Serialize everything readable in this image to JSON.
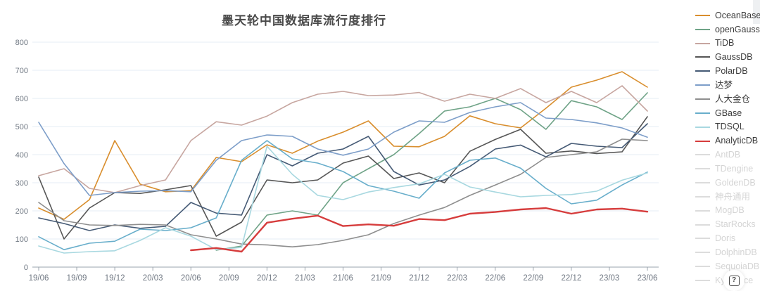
{
  "page": {
    "title_note": "Motianlun China database popularity ranking chart"
  },
  "chart_data": {
    "type": "line",
    "title": "墨天轮中国数据库流行度排行",
    "legend_position": "right",
    "grid": true,
    "ylim": [
      0,
      800
    ],
    "y_ticks": [
      0,
      100,
      200,
      300,
      400,
      500,
      600,
      700,
      800
    ],
    "x_tick_labels": [
      "19/06",
      "19/09",
      "19/12",
      "20/03",
      "20/06",
      "20/09",
      "20/12",
      "21/03",
      "21/06",
      "21/09",
      "21/12",
      "22/03",
      "22/06",
      "22/09",
      "22/12",
      "23/03",
      "23/06"
    ],
    "x": [
      "19/06",
      "19/08",
      "19/10",
      "19/12",
      "20/02",
      "20/04",
      "20/06",
      "20/08",
      "20/10",
      "20/12",
      "21/02",
      "21/04",
      "21/06",
      "21/08",
      "21/10",
      "21/12",
      "22/02",
      "22/04",
      "22/06",
      "22/08",
      "22/10",
      "22/12",
      "23/02",
      "23/04",
      "23/06"
    ],
    "series": [
      {
        "name": "OceanBase",
        "color": "#D98E2D",
        "bold": false,
        "disabled": false,
        "values": [
          210,
          170,
          240,
          450,
          295,
          268,
          272,
          390,
          375,
          435,
          405,
          448,
          480,
          520,
          430,
          428,
          465,
          538,
          510,
          495,
          565,
          640,
          665,
          695,
          640
        ]
      },
      {
        "name": "openGauss",
        "color": "#6FA387",
        "bold": false,
        "disabled": false,
        "values": [
          null,
          null,
          null,
          null,
          null,
          null,
          null,
          60,
          75,
          185,
          200,
          185,
          300,
          350,
          400,
          475,
          555,
          570,
          600,
          560,
          490,
          592,
          570,
          525,
          620
        ]
      },
      {
        "name": "TiDB",
        "color": "#C7A6A0",
        "bold": false,
        "disabled": false,
        "values": [
          325,
          350,
          280,
          265,
          290,
          310,
          450,
          517,
          505,
          537,
          585,
          615,
          625,
          610,
          612,
          621,
          590,
          615,
          600,
          635,
          585,
          625,
          585,
          645,
          555
        ]
      },
      {
        "name": "GaussDB",
        "color": "#565656",
        "bold": false,
        "disabled": false,
        "values": [
          320,
          100,
          210,
          265,
          262,
          275,
          290,
          110,
          160,
          310,
          300,
          310,
          370,
          395,
          315,
          335,
          300,
          412,
          454,
          490,
          405,
          413,
          404,
          410,
          535
        ]
      },
      {
        "name": "PolarDB",
        "color": "#455A75",
        "bold": false,
        "disabled": false,
        "values": [
          175,
          155,
          130,
          150,
          138,
          145,
          230,
          192,
          185,
          400,
          360,
          405,
          420,
          465,
          340,
          292,
          310,
          358,
          420,
          434,
          392,
          440,
          430,
          425,
          510
        ]
      },
      {
        "name": "达梦",
        "color": "#7D9EC9",
        "bold": false,
        "disabled": false,
        "values": [
          515,
          368,
          255,
          265,
          270,
          272,
          268,
          380,
          450,
          470,
          465,
          420,
          398,
          420,
          480,
          520,
          515,
          550,
          570,
          585,
          530,
          525,
          513,
          495,
          462
        ]
      },
      {
        "name": "人大金仓",
        "color": "#8E8E8E",
        "bold": false,
        "disabled": false,
        "values": [
          230,
          165,
          150,
          148,
          152,
          150,
          115,
          100,
          82,
          79,
          72,
          80,
          95,
          115,
          155,
          185,
          212,
          255,
          292,
          330,
          390,
          400,
          410,
          455,
          450
        ]
      },
      {
        "name": "GBase",
        "color": "#68AECB",
        "bold": false,
        "disabled": false,
        "values": [
          108,
          62,
          85,
          92,
          135,
          130,
          140,
          175,
          380,
          450,
          385,
          370,
          340,
          290,
          270,
          245,
          335,
          380,
          388,
          352,
          280,
          225,
          238,
          292,
          338
        ]
      },
      {
        "name": "TDSQL",
        "color": "#A8D8E0",
        "bold": false,
        "disabled": false,
        "values": [
          75,
          50,
          55,
          58,
          95,
          140,
          110,
          62,
          70,
          430,
          330,
          255,
          240,
          267,
          283,
          296,
          330,
          285,
          267,
          250,
          255,
          258,
          270,
          309,
          335
        ]
      },
      {
        "name": "AnalyticDB",
        "color": "#D63C3C",
        "bold": true,
        "disabled": false,
        "values": [
          null,
          null,
          null,
          null,
          null,
          null,
          60,
          68,
          55,
          158,
          172,
          183,
          146,
          152,
          147,
          171,
          167,
          190,
          196,
          205,
          210,
          190,
          205,
          208,
          197
        ]
      },
      {
        "name": "AntDB",
        "color": "#DCDCDC",
        "bold": false,
        "disabled": true,
        "values": null
      },
      {
        "name": "TDengine",
        "color": "#DCDCDC",
        "bold": false,
        "disabled": true,
        "values": null
      },
      {
        "name": "GoldenDB",
        "color": "#DCDCDC",
        "bold": false,
        "disabled": true,
        "values": null
      },
      {
        "name": "神舟通用",
        "color": "#DCDCDC",
        "bold": false,
        "disabled": true,
        "values": null
      },
      {
        "name": "MogDB",
        "color": "#DCDCDC",
        "bold": false,
        "disabled": true,
        "values": null
      },
      {
        "name": "StarRocks",
        "color": "#DCDCDC",
        "bold": false,
        "disabled": true,
        "values": null
      },
      {
        "name": "Doris",
        "color": "#DCDCDC",
        "bold": false,
        "disabled": true,
        "values": null
      },
      {
        "name": "DolphinDB",
        "color": "#DCDCDC",
        "bold": false,
        "disabled": true,
        "values": null
      },
      {
        "name": "SequoiaDB",
        "color": "#DCDCDC",
        "bold": false,
        "disabled": true,
        "values": null
      },
      {
        "name": "Kyligence",
        "color": "#DCDCDC",
        "bold": false,
        "disabled": true,
        "values": null
      }
    ]
  },
  "help": {
    "glyph": "?"
  },
  "colors": {
    "grid_line": "#E6EDF4",
    "axis_line": "#9AA3AC",
    "axis_label": "#707883",
    "title": "#4a4a4a",
    "legend_active_text": "#3c3c3c",
    "legend_disabled_text": "#d4d4d4"
  }
}
